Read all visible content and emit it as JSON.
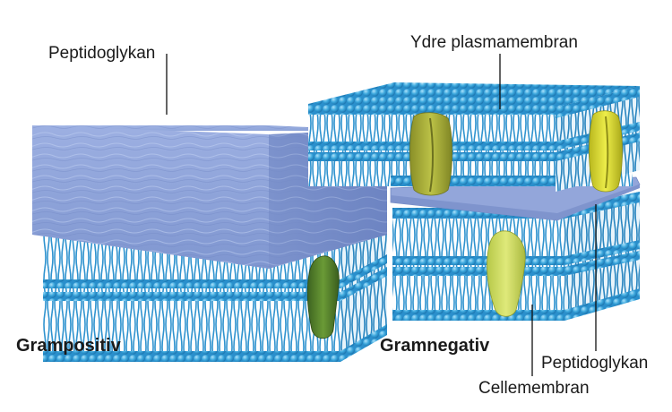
{
  "labels": {
    "gram_positive_peptidoglycan": "Peptidoglykan",
    "outer_membrane": "Ydre plasmamembran",
    "gram_positive": "Grampositiv",
    "gram_negative": "Gramnegativ",
    "gram_negative_peptidoglycan": "Peptidoglykan",
    "cell_membrane": "Cellemembran"
  },
  "colors": {
    "lipid_head": "#3aa6dc",
    "lipid_tail": "#2b8bc4",
    "peptidoglycan": "#8da4d8",
    "protein_dark": "#4f7a2a",
    "protein_olive": "#a3a837",
    "protein_light": "#c9d85a",
    "protein_yellow": "#d8d83a"
  }
}
